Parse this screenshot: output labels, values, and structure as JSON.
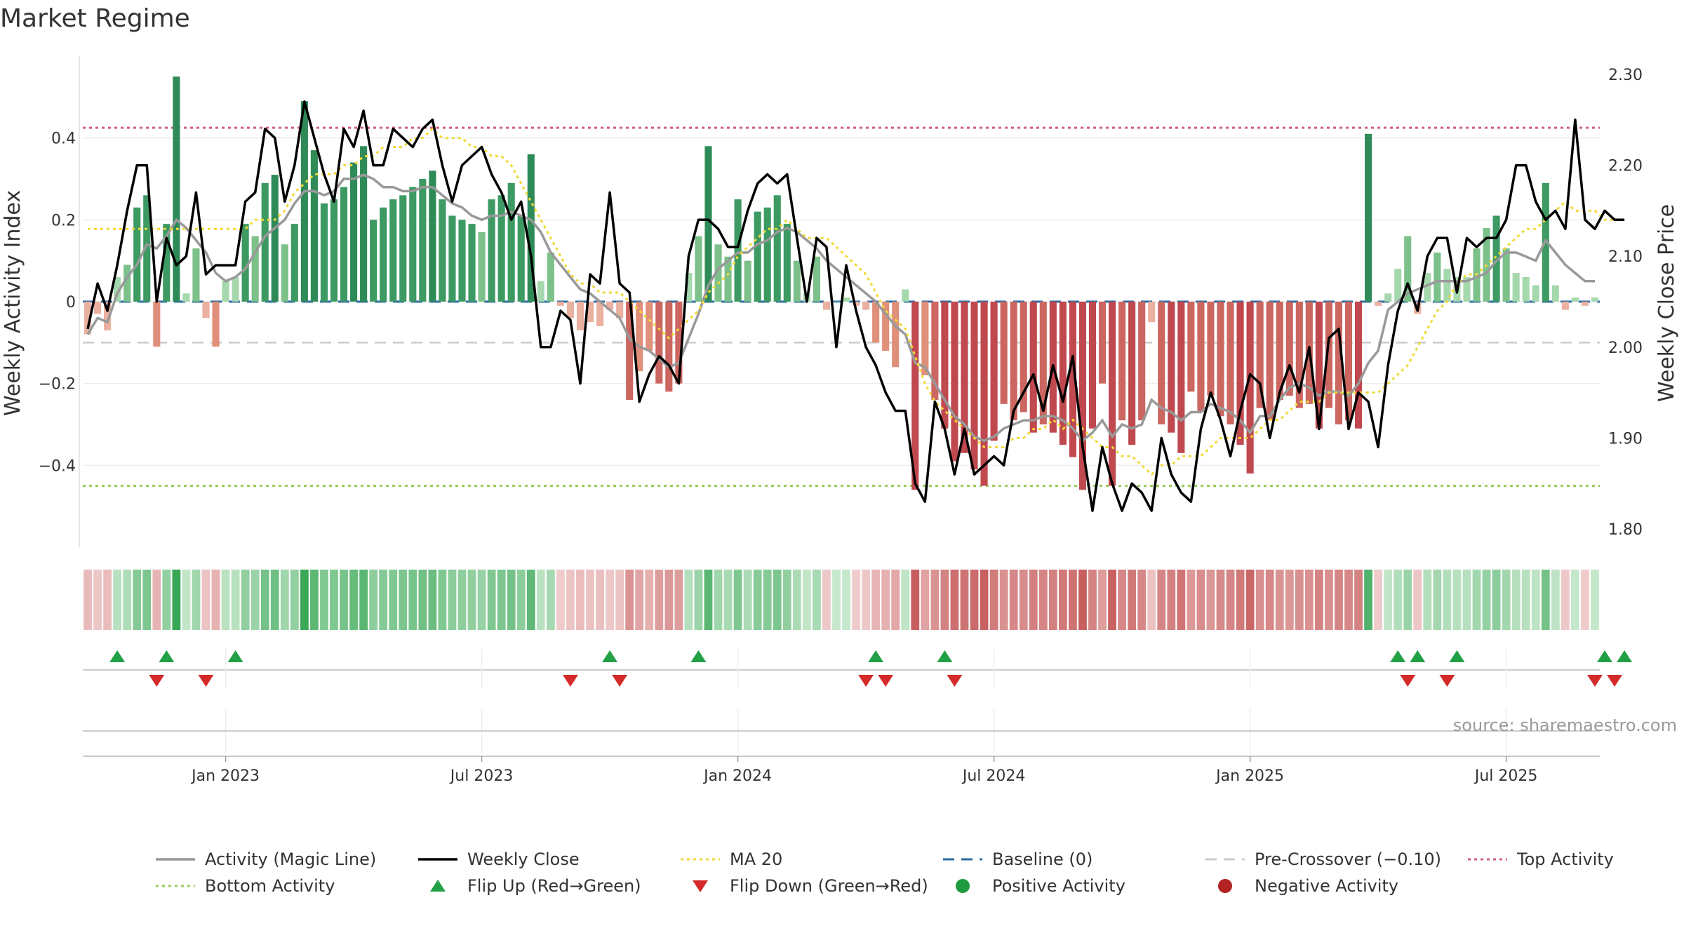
{
  "chart_data": {
    "type": "bar+line",
    "title": "Market Regime",
    "source": "source: sharemaestro.com",
    "left_axis": {
      "label": "Weekly Activity Index",
      "range": [
        -0.6,
        0.6
      ],
      "ticks": [
        "0.4",
        "0.2",
        "0",
        "−0.2",
        "−0.4"
      ],
      "tick_values": [
        0.4,
        0.2,
        0,
        -0.2,
        -0.4
      ]
    },
    "right_axis": {
      "label": "Weekly Close Price",
      "range": [
        1.78,
        2.32
      ],
      "ticks": [
        "2.30",
        "2.20",
        "2.10",
        "2.00",
        "1.90",
        "1.80"
      ],
      "tick_values": [
        2.3,
        2.2,
        2.1,
        2.0,
        1.9,
        1.8
      ]
    },
    "x_ticks": [
      "Jan 2023",
      "Jul 2023",
      "Jan 2024",
      "Jul 2024",
      "Jan 2025",
      "Jul 2025"
    ],
    "x_tick_weeks": [
      14,
      40,
      66,
      92,
      118,
      144
    ],
    "levels": {
      "top_activity": 0.425,
      "bottom_activity": -0.45,
      "pre_crossover": -0.1,
      "baseline": 0
    },
    "activity": [
      -0.08,
      -0.03,
      -0.07,
      0.06,
      0.09,
      0.23,
      0.26,
      -0.11,
      0.19,
      0.55,
      0.02,
      0.13,
      -0.04,
      -0.11,
      0.05,
      0.06,
      0.19,
      0.16,
      0.29,
      0.31,
      0.14,
      0.19,
      0.49,
      0.37,
      0.24,
      0.25,
      0.28,
      0.34,
      0.38,
      0.2,
      0.23,
      0.25,
      0.26,
      0.28,
      0.3,
      0.32,
      0.25,
      0.21,
      0.2,
      0.19,
      0.17,
      0.25,
      0.26,
      0.29,
      0.21,
      0.36,
      0.05,
      0.12,
      -0.01,
      -0.04,
      -0.07,
      -0.05,
      -0.06,
      -0.02,
      -0.04,
      -0.24,
      -0.17,
      -0.12,
      -0.2,
      -0.22,
      -0.2,
      0.07,
      0.16,
      0.38,
      0.14,
      0.11,
      0.25,
      0.1,
      0.22,
      0.23,
      0.26,
      0.19,
      0.1,
      0.02,
      0.11,
      -0.02,
      0,
      0.01,
      -0.01,
      -0.02,
      -0.1,
      -0.12,
      -0.16,
      0.03,
      -0.46,
      -0.18,
      -0.24,
      -0.31,
      -0.39,
      -0.37,
      -0.41,
      -0.45,
      -0.34,
      -0.25,
      -0.29,
      -0.27,
      -0.32,
      -0.3,
      -0.32,
      -0.35,
      -0.38,
      -0.46,
      -0.31,
      -0.2,
      -0.45,
      -0.29,
      -0.35,
      -0.29,
      -0.05,
      -0.3,
      -0.32,
      -0.37,
      -0.22,
      -0.27,
      -0.23,
      -0.28,
      -0.3,
      -0.35,
      -0.42,
      -0.26,
      -0.29,
      -0.24,
      -0.23,
      -0.26,
      -0.25,
      -0.31,
      -0.26,
      -0.3,
      -0.29,
      -0.31,
      0.41,
      -0.01,
      0.02,
      0.08,
      0.16,
      -0.03,
      0.07,
      0.12,
      0.08,
      0.06,
      0.06,
      0.13,
      0.18,
      0.21,
      0.13,
      0.07,
      0.06,
      0.04,
      0.29,
      0.04,
      -0.02,
      0.01,
      -0.01,
      0.01
    ],
    "magic_line": [
      -0.08,
      -0.04,
      -0.05,
      0.02,
      0.06,
      0.09,
      0.14,
      0.13,
      0.16,
      0.2,
      0.18,
      0.15,
      0.12,
      0.07,
      0.05,
      0.06,
      0.08,
      0.12,
      0.16,
      0.18,
      0.2,
      0.24,
      0.27,
      0.27,
      0.26,
      0.27,
      0.3,
      0.3,
      0.31,
      0.3,
      0.28,
      0.28,
      0.27,
      0.27,
      0.28,
      0.28,
      0.26,
      0.24,
      0.23,
      0.21,
      0.2,
      0.21,
      0.21,
      0.22,
      0.21,
      0.2,
      0.17,
      0.12,
      0.09,
      0.06,
      0.03,
      0.02,
      0.0,
      -0.02,
      -0.04,
      -0.09,
      -0.11,
      -0.12,
      -0.14,
      -0.16,
      -0.15,
      -0.09,
      -0.03,
      0.04,
      0.08,
      0.1,
      0.12,
      0.12,
      0.14,
      0.15,
      0.17,
      0.18,
      0.17,
      0.15,
      0.13,
      0.1,
      0.08,
      0.06,
      0.04,
      0.02,
      0.0,
      -0.03,
      -0.06,
      -0.08,
      -0.15,
      -0.16,
      -0.2,
      -0.24,
      -0.28,
      -0.3,
      -0.33,
      -0.34,
      -0.33,
      -0.31,
      -0.3,
      -0.29,
      -0.29,
      -0.28,
      -0.28,
      -0.29,
      -0.31,
      -0.34,
      -0.32,
      -0.29,
      -0.33,
      -0.3,
      -0.31,
      -0.3,
      -0.24,
      -0.26,
      -0.27,
      -0.29,
      -0.27,
      -0.27,
      -0.25,
      -0.26,
      -0.27,
      -0.29,
      -0.32,
      -0.28,
      -0.28,
      -0.24,
      -0.21,
      -0.2,
      -0.21,
      -0.23,
      -0.22,
      -0.22,
      -0.23,
      -0.2,
      -0.15,
      -0.12,
      -0.02,
      0.0,
      0.02,
      0.03,
      0.04,
      0.05,
      0.05,
      0.05,
      0.05,
      0.06,
      0.07,
      0.1,
      0.12,
      0.12,
      0.11,
      0.1,
      0.15,
      0.12,
      0.09,
      0.07,
      0.05,
      0.05
    ],
    "weekly_close": [
      2.02,
      2.07,
      2.04,
      2.09,
      2.15,
      2.2,
      2.2,
      2.05,
      2.12,
      2.09,
      2.1,
      2.17,
      2.08,
      2.09,
      2.09,
      2.09,
      2.16,
      2.17,
      2.24,
      2.23,
      2.16,
      2.2,
      2.27,
      2.23,
      2.19,
      2.16,
      2.24,
      2.22,
      2.26,
      2.2,
      2.2,
      2.24,
      2.23,
      2.22,
      2.24,
      2.25,
      2.2,
      2.16,
      2.2,
      2.21,
      2.22,
      2.19,
      2.17,
      2.14,
      2.16,
      2.1,
      2.0,
      2.0,
      2.04,
      2.03,
      1.96,
      2.08,
      2.07,
      2.17,
      2.07,
      2.06,
      1.94,
      1.97,
      1.99,
      1.98,
      1.96,
      2.1,
      2.14,
      2.14,
      2.13,
      2.11,
      2.11,
      2.15,
      2.18,
      2.19,
      2.18,
      2.19,
      2.12,
      2.05,
      2.12,
      2.11,
      2.0,
      2.09,
      2.04,
      2.0,
      1.98,
      1.95,
      1.93,
      1.93,
      1.85,
      1.83,
      1.94,
      1.91,
      1.86,
      1.91,
      1.86,
      1.87,
      1.88,
      1.87,
      1.93,
      1.95,
      1.97,
      1.93,
      1.98,
      1.94,
      1.99,
      1.89,
      1.82,
      1.89,
      1.85,
      1.82,
      1.85,
      1.84,
      1.82,
      1.9,
      1.86,
      1.84,
      1.83,
      1.91,
      1.95,
      1.92,
      1.88,
      1.93,
      1.97,
      1.96,
      1.9,
      1.95,
      1.98,
      1.95,
      2.0,
      1.91,
      2.01,
      2.02,
      1.91,
      1.95,
      1.94,
      1.89,
      1.98,
      2.04,
      2.07,
      2.04,
      2.1,
      2.12,
      2.12,
      2.06,
      2.12,
      2.11,
      2.12,
      2.12,
      2.14,
      2.2,
      2.2,
      2.16,
      2.14,
      2.15,
      2.13,
      2.25,
      2.14,
      2.13,
      2.15,
      2.14,
      2.14
    ],
    "ma20": [
      2.13,
      2.13,
      2.13,
      2.13,
      2.13,
      2.13,
      2.13,
      2.13,
      2.13,
      2.13,
      2.13,
      2.13,
      2.13,
      2.13,
      2.13,
      2.13,
      2.13,
      2.14,
      2.14,
      2.14,
      2.15,
      2.17,
      2.18,
      2.19,
      2.19,
      2.19,
      2.2,
      2.2,
      2.21,
      2.21,
      2.22,
      2.22,
      2.22,
      2.23,
      2.23,
      2.24,
      2.23,
      2.23,
      2.23,
      2.22,
      2.22,
      2.21,
      2.21,
      2.2,
      2.18,
      2.16,
      2.14,
      2.12,
      2.1,
      2.08,
      2.07,
      2.07,
      2.06,
      2.06,
      2.06,
      2.05,
      2.04,
      2.03,
      2.02,
      2.01,
      2.02,
      2.03,
      2.04,
      2.06,
      2.07,
      2.08,
      2.1,
      2.11,
      2.12,
      2.13,
      2.13,
      2.14,
      2.13,
      2.12,
      2.12,
      2.12,
      2.11,
      2.1,
      2.09,
      2.08,
      2.06,
      2.04,
      2.03,
      2.02,
      1.99,
      1.96,
      1.94,
      1.93,
      1.92,
      1.91,
      1.9,
      1.89,
      1.89,
      1.89,
      1.9,
      1.9,
      1.91,
      1.91,
      1.92,
      1.91,
      1.92,
      1.91,
      1.9,
      1.89,
      1.89,
      1.88,
      1.88,
      1.87,
      1.86,
      1.87,
      1.87,
      1.88,
      1.88,
      1.88,
      1.89,
      1.9,
      1.9,
      1.9,
      1.9,
      1.91,
      1.92,
      1.92,
      1.93,
      1.94,
      1.94,
      1.94,
      1.95,
      1.95,
      1.95,
      1.95,
      1.95,
      1.95,
      1.96,
      1.97,
      1.98,
      2.0,
      2.02,
      2.04,
      2.05,
      2.07,
      2.08,
      2.08,
      2.09,
      2.1,
      2.11,
      2.12,
      2.13,
      2.13,
      2.14,
      2.15,
      2.16,
      2.15,
      2.15,
      2.15,
      2.14,
      2.14
    ],
    "flip_up_weeks": [
      3,
      8,
      15,
      53,
      62,
      80,
      87,
      133,
      135,
      139,
      154,
      156
    ],
    "flip_down_weeks": [
      7,
      12,
      49,
      54,
      79,
      81,
      88,
      134,
      138,
      153,
      155
    ],
    "legend": [
      {
        "label": "Activity (Magic Line)",
        "type": "line",
        "color": "#999999"
      },
      {
        "label": "Weekly Close",
        "type": "line",
        "color": "#000000"
      },
      {
        "label": "MA 20",
        "type": "dotted",
        "color": "#f2d934"
      },
      {
        "label": "Baseline (0)",
        "type": "dashed",
        "color": "#2b6ca3"
      },
      {
        "label": "Pre-Crossover (−0.10)",
        "type": "dashed",
        "color": "#cccccc"
      },
      {
        "label": "Top Activity",
        "type": "dotted",
        "color": "#d0607a"
      },
      {
        "label": "Bottom Activity",
        "type": "dotted",
        "color": "#9acd5a"
      },
      {
        "label": "Flip Up (Red→Green)",
        "type": "triangle-up",
        "color": "#22a045"
      },
      {
        "label": "Flip Down (Green→Red)",
        "type": "triangle-down",
        "color": "#d42a2a"
      },
      {
        "label": "Positive Activity",
        "type": "dot",
        "color": "#1f9a3e"
      },
      {
        "label": "Negative Activity",
        "type": "dot",
        "color": "#b22222"
      }
    ]
  }
}
